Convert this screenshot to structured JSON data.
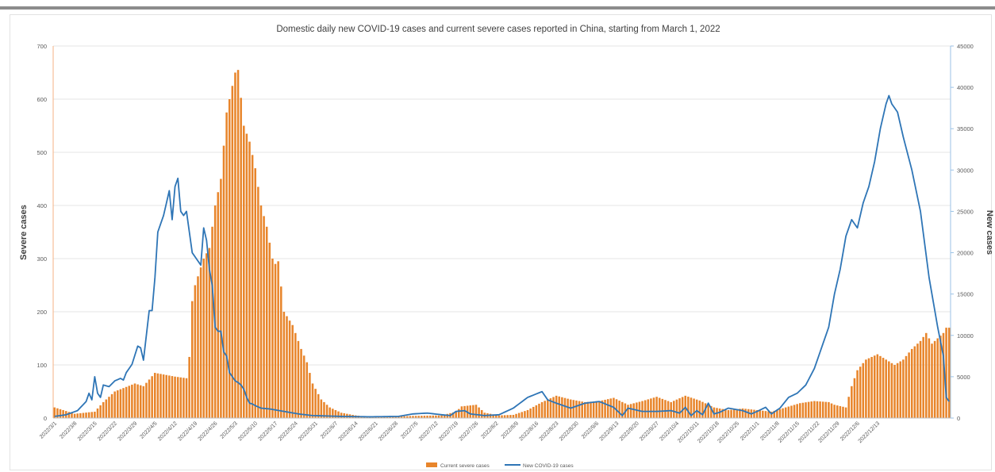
{
  "chart_data": {
    "type": "bar+line",
    "title": "Domestic daily new COVID-19 cases and current severe cases reported in China, starting from March 1, 2022",
    "ylabel_left": "Severe cases",
    "ylabel_right": "New cases",
    "ylim_left": [
      0,
      700
    ],
    "ylim_right": [
      0,
      45000
    ],
    "yticks_left": [
      "0",
      "100",
      "200",
      "300",
      "400",
      "500",
      "600",
      "700"
    ],
    "yticks_right": [
      "0",
      "5000",
      "10000",
      "15000",
      "20000",
      "25000",
      "30000",
      "35000",
      "40000",
      "45000"
    ],
    "xticks": [
      "2022/3/1",
      "2022/3/8",
      "2022/3/15",
      "2022/3/22",
      "2022/3/29",
      "2022/4/5",
      "2022/4/12",
      "2022/4/19",
      "2022/4/26",
      "2022/5/3",
      "2022/5/10",
      "2022/5/17",
      "2022/5/24",
      "2022/5/31",
      "2022/6/7",
      "2022/6/14",
      "2022/6/21",
      "2022/6/28",
      "2022/7/5",
      "2022/7/12",
      "2022/7/19",
      "2022/7/26",
      "2022/8/2",
      "2022/8/9",
      "2022/8/16",
      "2022/8/23",
      "2022/8/30",
      "2022/9/6",
      "2022/9/13",
      "2022/9/20",
      "2022/9/27",
      "2022/10/4",
      "2022/10/11",
      "2022/10/18",
      "2022/10/25",
      "2022/11/1",
      "2022/11/8",
      "2022/11/15",
      "2022/11/22",
      "2022/11/29",
      "2022/12/6",
      "2022/12/13"
    ],
    "grid": true,
    "legend_position": "bottom",
    "series": [
      {
        "name": "Current severe cases",
        "kind": "bar",
        "axis": "left",
        "color": "#e8852b",
        "points": [
          [
            0,
            20
          ],
          [
            3,
            15
          ],
          [
            7,
            8
          ],
          [
            14,
            12
          ],
          [
            17,
            30
          ],
          [
            21,
            50
          ],
          [
            28,
            65
          ],
          [
            31,
            60
          ],
          [
            35,
            85
          ],
          [
            42,
            78
          ],
          [
            46,
            75
          ],
          [
            47,
            115
          ],
          [
            48,
            220
          ],
          [
            49,
            250
          ],
          [
            52,
            300
          ],
          [
            54,
            320
          ],
          [
            56,
            400
          ],
          [
            58,
            450
          ],
          [
            60,
            575
          ],
          [
            62,
            625
          ],
          [
            63,
            650
          ],
          [
            64,
            655
          ],
          [
            66,
            550
          ],
          [
            68,
            520
          ],
          [
            70,
            470
          ],
          [
            72,
            400
          ],
          [
            74,
            360
          ],
          [
            76,
            300
          ],
          [
            77,
            290
          ],
          [
            78,
            295
          ],
          [
            80,
            200
          ],
          [
            83,
            175
          ],
          [
            86,
            130
          ],
          [
            88,
            105
          ],
          [
            90,
            65
          ],
          [
            93,
            35
          ],
          [
            96,
            20
          ],
          [
            100,
            10
          ],
          [
            105,
            5
          ],
          [
            110,
            2
          ],
          [
            115,
            2
          ],
          [
            125,
            4
          ],
          [
            135,
            5
          ],
          [
            140,
            12
          ],
          [
            142,
            22
          ],
          [
            147,
            25
          ],
          [
            150,
            10
          ],
          [
            155,
            5
          ],
          [
            160,
            6
          ],
          [
            165,
            15
          ],
          [
            170,
            30
          ],
          [
            175,
            42
          ],
          [
            180,
            35
          ],
          [
            185,
            30
          ],
          [
            190,
            32
          ],
          [
            195,
            38
          ],
          [
            200,
            25
          ],
          [
            205,
            32
          ],
          [
            210,
            40
          ],
          [
            215,
            30
          ],
          [
            220,
            42
          ],
          [
            225,
            33
          ],
          [
            230,
            20
          ],
          [
            235,
            15
          ],
          [
            240,
            18
          ],
          [
            245,
            15
          ],
          [
            250,
            12
          ],
          [
            255,
            20
          ],
          [
            260,
            28
          ],
          [
            265,
            32
          ],
          [
            270,
            30
          ],
          [
            272,
            25
          ],
          [
            276,
            20
          ],
          [
            278,
            60
          ],
          [
            280,
            90
          ],
          [
            283,
            110
          ],
          [
            287,
            120
          ],
          [
            290,
            110
          ],
          [
            293,
            100
          ],
          [
            296,
            110
          ],
          [
            299,
            130
          ],
          [
            302,
            145
          ],
          [
            304,
            160
          ],
          [
            306,
            140
          ],
          [
            308,
            150
          ],
          [
            310,
            160
          ],
          [
            311,
            170
          ]
        ]
      },
      {
        "name": "New COVID-19 cases",
        "kind": "line",
        "axis": "right",
        "color": "#2e75b6",
        "points": [
          [
            0,
            200
          ],
          [
            4,
            400
          ],
          [
            8,
            900
          ],
          [
            11,
            2000
          ],
          [
            12,
            3000
          ],
          [
            13,
            2200
          ],
          [
            14,
            5000
          ],
          [
            15,
            3000
          ],
          [
            16,
            2500
          ],
          [
            17,
            4000
          ],
          [
            19,
            3800
          ],
          [
            21,
            4500
          ],
          [
            23,
            4800
          ],
          [
            24,
            4600
          ],
          [
            25,
            5500
          ],
          [
            27,
            6500
          ],
          [
            29,
            8700
          ],
          [
            30,
            8500
          ],
          [
            31,
            7000
          ],
          [
            32,
            10000
          ],
          [
            33,
            13000
          ],
          [
            34,
            13000
          ],
          [
            35,
            17000
          ],
          [
            36,
            22500
          ],
          [
            37,
            23500
          ],
          [
            38,
            24500
          ],
          [
            40,
            27500
          ],
          [
            41,
            24000
          ],
          [
            42,
            28000
          ],
          [
            43,
            29000
          ],
          [
            44,
            25000
          ],
          [
            45,
            24500
          ],
          [
            46,
            25000
          ],
          [
            48,
            20000
          ],
          [
            50,
            19000
          ],
          [
            51,
            18500
          ],
          [
            52,
            23000
          ],
          [
            53,
            21500
          ],
          [
            54,
            18000
          ],
          [
            55,
            16000
          ],
          [
            56,
            11000
          ],
          [
            57,
            10500
          ],
          [
            58,
            10500
          ],
          [
            59,
            8000
          ],
          [
            60,
            7500
          ],
          [
            61,
            5500
          ],
          [
            62,
            5000
          ],
          [
            63,
            4500
          ],
          [
            64,
            4300
          ],
          [
            65,
            4000
          ],
          [
            66,
            3500
          ],
          [
            67,
            2500
          ],
          [
            68,
            1800
          ],
          [
            69,
            1700
          ],
          [
            70,
            1500
          ],
          [
            72,
            1200
          ],
          [
            75,
            1100
          ],
          [
            80,
            800
          ],
          [
            85,
            500
          ],
          [
            90,
            300
          ],
          [
            95,
            250
          ],
          [
            100,
            200
          ],
          [
            110,
            150
          ],
          [
            120,
            200
          ],
          [
            125,
            500
          ],
          [
            130,
            600
          ],
          [
            135,
            400
          ],
          [
            138,
            300
          ],
          [
            140,
            800
          ],
          [
            143,
            900
          ],
          [
            145,
            500
          ],
          [
            150,
            300
          ],
          [
            155,
            400
          ],
          [
            160,
            1200
          ],
          [
            165,
            2500
          ],
          [
            170,
            3200
          ],
          [
            172,
            2200
          ],
          [
            175,
            1800
          ],
          [
            180,
            1200
          ],
          [
            185,
            1800
          ],
          [
            190,
            2000
          ],
          [
            195,
            1300
          ],
          [
            198,
            300
          ],
          [
            200,
            1200
          ],
          [
            205,
            800
          ],
          [
            210,
            800
          ],
          [
            215,
            900
          ],
          [
            218,
            600
          ],
          [
            220,
            1300
          ],
          [
            222,
            300
          ],
          [
            224,
            900
          ],
          [
            226,
            400
          ],
          [
            228,
            1800
          ],
          [
            230,
            500
          ],
          [
            232,
            700
          ],
          [
            235,
            1200
          ],
          [
            240,
            900
          ],
          [
            243,
            500
          ],
          [
            245,
            800
          ],
          [
            248,
            1300
          ],
          [
            250,
            500
          ],
          [
            253,
            1200
          ],
          [
            256,
            2500
          ],
          [
            259,
            3000
          ],
          [
            262,
            4000
          ],
          [
            265,
            6000
          ],
          [
            267,
            8000
          ],
          [
            270,
            11000
          ],
          [
            272,
            15000
          ],
          [
            274,
            18000
          ],
          [
            276,
            22000
          ],
          [
            278,
            24000
          ],
          [
            280,
            23000
          ],
          [
            282,
            26000
          ],
          [
            284,
            28000
          ],
          [
            286,
            31000
          ],
          [
            288,
            35000
          ],
          [
            290,
            38000
          ],
          [
            291,
            39000
          ],
          [
            292,
            38000
          ],
          [
            294,
            37000
          ],
          [
            296,
            34000
          ],
          [
            299,
            30000
          ],
          [
            302,
            25000
          ],
          [
            305,
            17000
          ],
          [
            308,
            11000
          ],
          [
            310,
            7500
          ],
          [
            311,
            2500
          ],
          [
            312,
            2000
          ]
        ]
      }
    ]
  }
}
